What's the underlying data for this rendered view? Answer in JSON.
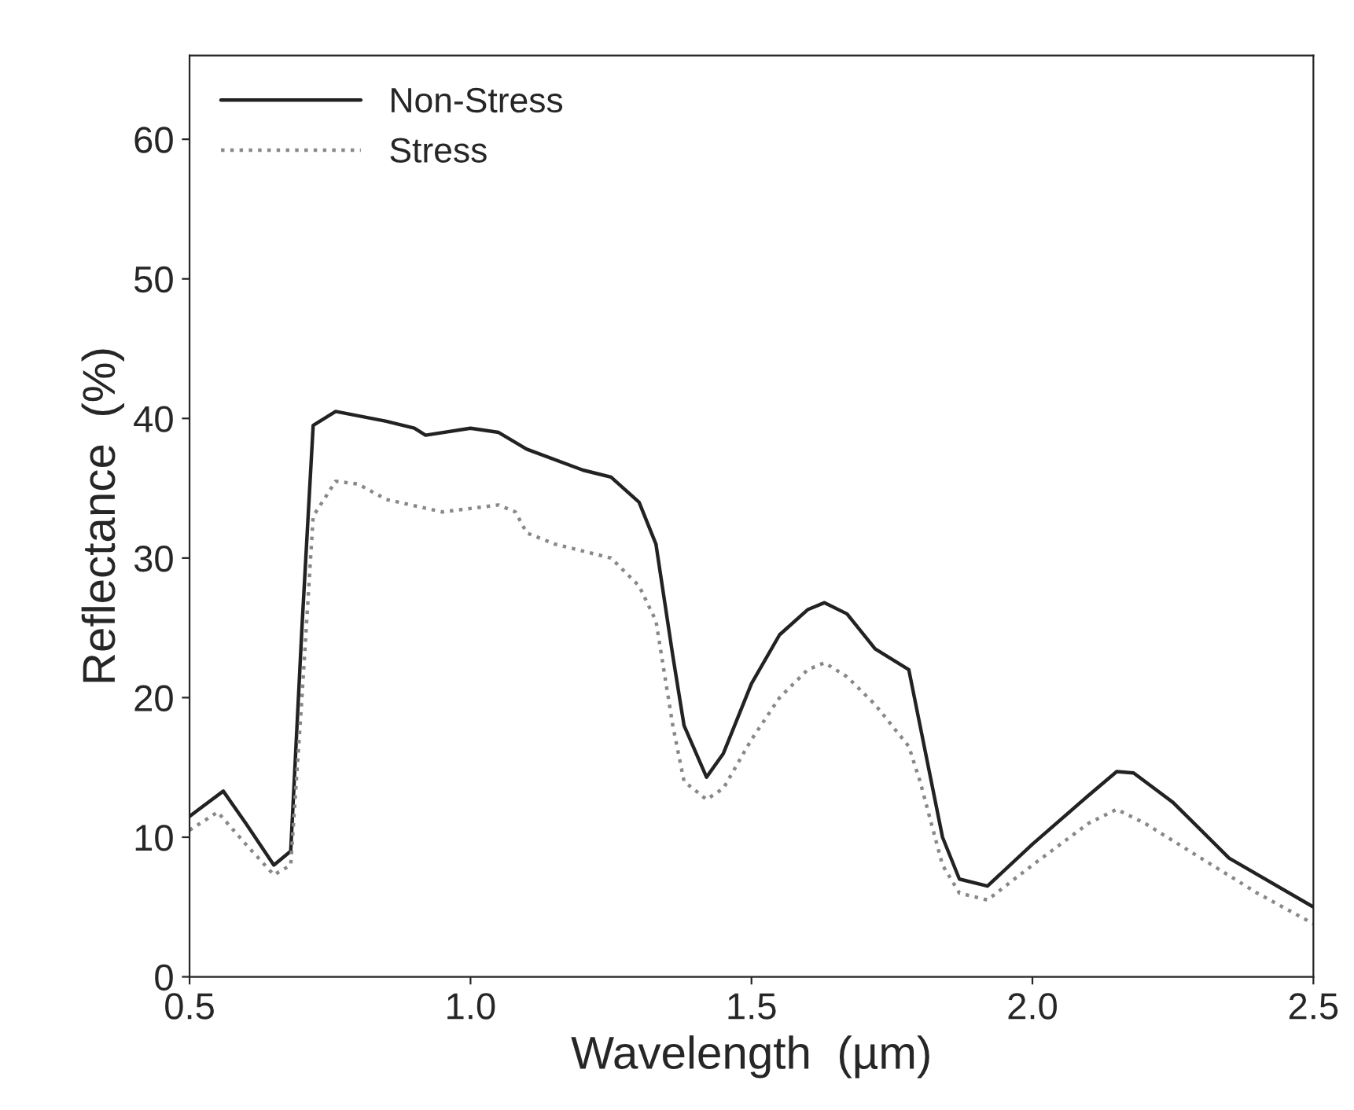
{
  "chart_data": {
    "type": "line",
    "xlabel": "Wavelength  (µm)",
    "ylabel": "Reflectance  (%)",
    "xlim": [
      0.5,
      2.5
    ],
    "ylim": [
      0,
      66
    ],
    "xticks": [
      {
        "value": 0.5,
        "label": "0.5"
      },
      {
        "value": 1.0,
        "label": "1.0"
      },
      {
        "value": 1.5,
        "label": "1.5"
      },
      {
        "value": 2.0,
        "label": "2.0"
      },
      {
        "value": 2.5,
        "label": "2.5"
      }
    ],
    "yticks": [
      0,
      10,
      20,
      30,
      40,
      50,
      60
    ],
    "grid": false,
    "legend": "top left",
    "marker": "none",
    "series": [
      {
        "name": "Non-Stress",
        "color": "#222222",
        "line_style": "solid",
        "x": [
          0.5,
          0.56,
          0.6,
          0.65,
          0.68,
          0.7,
          0.72,
          0.76,
          0.85,
          0.9,
          0.92,
          1.0,
          1.05,
          1.1,
          1.2,
          1.25,
          1.3,
          1.33,
          1.36,
          1.38,
          1.42,
          1.45,
          1.5,
          1.55,
          1.6,
          1.63,
          1.67,
          1.72,
          1.78,
          1.8,
          1.84,
          1.87,
          1.92,
          2.0,
          2.1,
          2.15,
          2.18,
          2.25,
          2.35,
          2.5
        ],
        "values": [
          11.5,
          13.3,
          11,
          8,
          9,
          25,
          39.5,
          40.5,
          39.8,
          39.3,
          38.8,
          39.3,
          39,
          37.8,
          36.3,
          35.8,
          34,
          31,
          23,
          18,
          14.3,
          16,
          21,
          24.5,
          26.3,
          26.8,
          26,
          23.5,
          22,
          18,
          10,
          7,
          6.5,
          9.5,
          13,
          14.7,
          14.6,
          12.5,
          8.5,
          5
        ]
      },
      {
        "name": "Stress",
        "color": "#888888",
        "line_style": "dotted",
        "x": [
          0.5,
          0.55,
          0.6,
          0.65,
          0.68,
          0.7,
          0.72,
          0.76,
          0.8,
          0.85,
          0.95,
          1.05,
          1.08,
          1.1,
          1.15,
          1.25,
          1.3,
          1.33,
          1.36,
          1.38,
          1.42,
          1.45,
          1.5,
          1.55,
          1.6,
          1.63,
          1.67,
          1.72,
          1.78,
          1.8,
          1.84,
          1.87,
          1.92,
          2.0,
          2.1,
          2.15,
          2.2,
          2.3,
          2.4,
          2.5
        ],
        "values": [
          10.5,
          11.8,
          9.5,
          7.3,
          8,
          20,
          33,
          35.5,
          35.3,
          34.2,
          33.3,
          33.8,
          33.3,
          31.8,
          31,
          30,
          28,
          25.5,
          18,
          14,
          12.7,
          13.5,
          17,
          20,
          22,
          22.5,
          21.5,
          19.5,
          16.5,
          14,
          8,
          6,
          5.5,
          8,
          11,
          12,
          11,
          8.5,
          6,
          3.8
        ]
      }
    ]
  }
}
